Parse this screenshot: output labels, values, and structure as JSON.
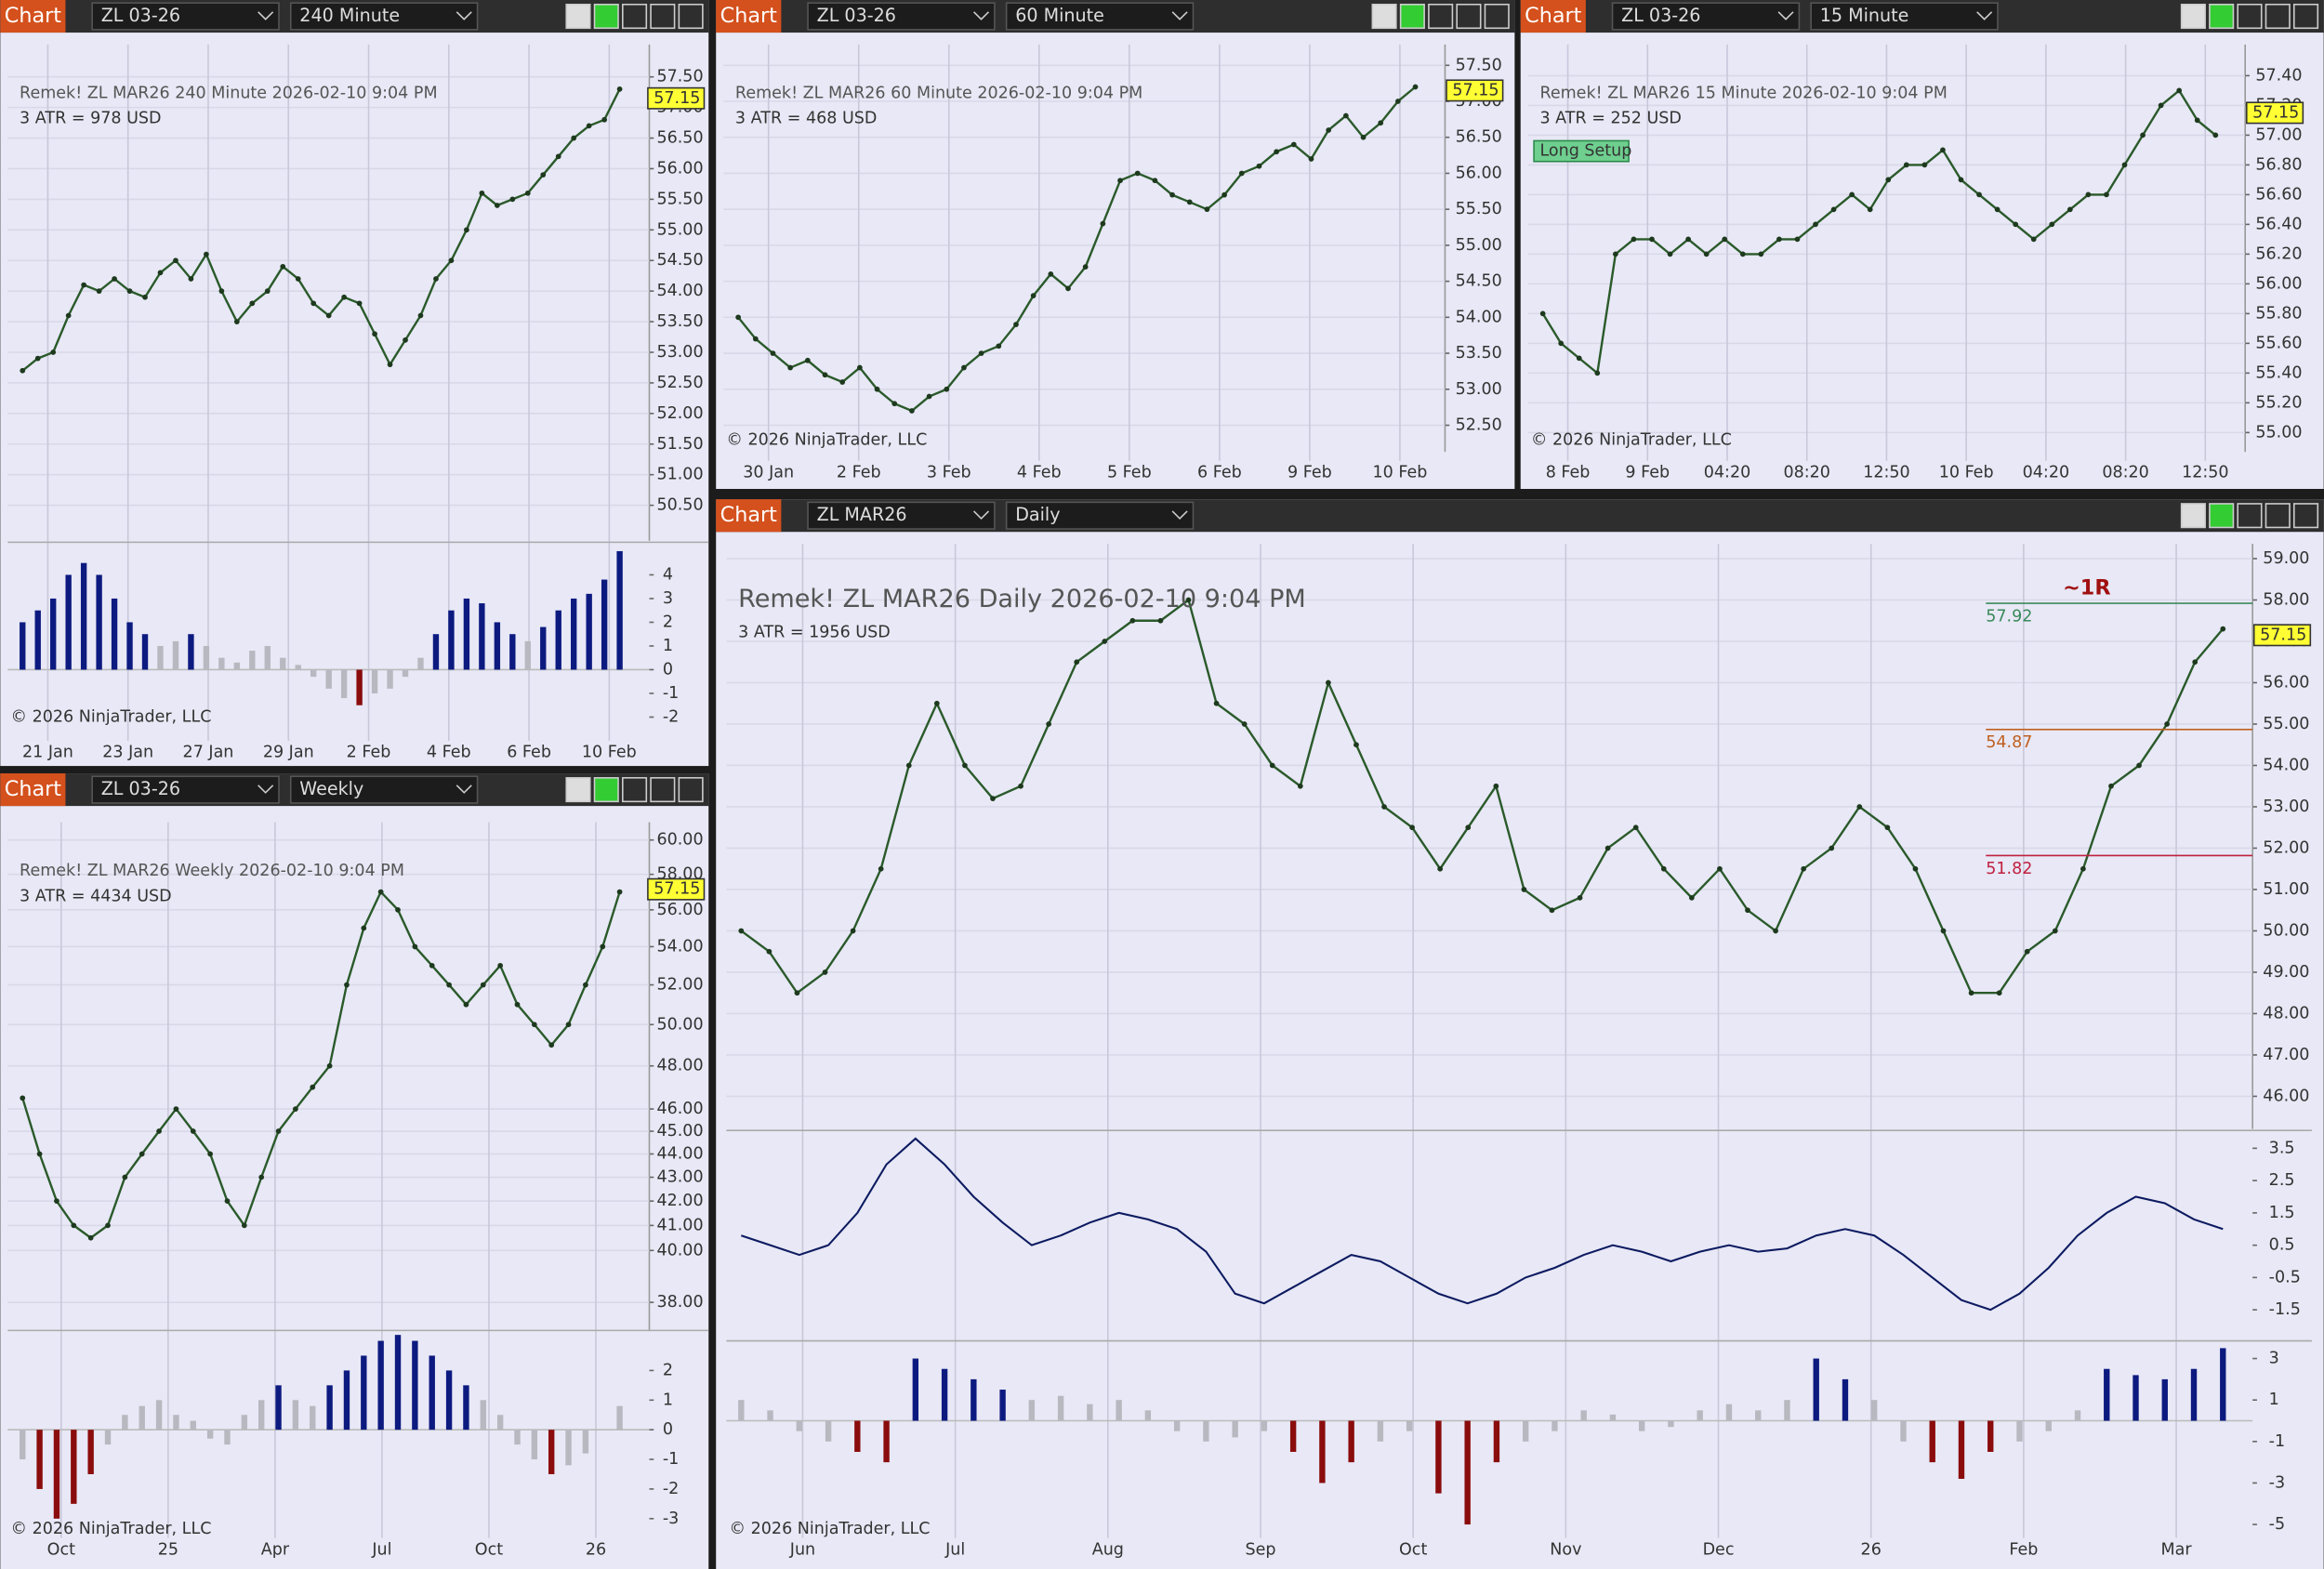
{
  "chart_data": [
    {
      "type": "line",
      "header_label": "Chart",
      "instrument": "ZL 03-26",
      "timeframe": "240 Minute",
      "label": "Remek!  ZL MAR26  240 Minute  2026-02-10 9:04 PM",
      "atr": "3 ATR = 978 USD",
      "copyright": "© 2026 NinjaTrader, LLC",
      "ylim": [
        49.92,
        58.03
      ],
      "yticks": [
        {
          "value": 57.5,
          "label": "57.50"
        },
        {
          "value": 57,
          "label": "57.00"
        },
        {
          "value": 56.5,
          "label": "56.50"
        },
        {
          "value": 56,
          "label": "56.00"
        },
        {
          "value": 55.5,
          "label": "55.50"
        },
        {
          "value": 55,
          "label": "55.00"
        },
        {
          "value": 54.5,
          "label": "54.50"
        },
        {
          "value": 54,
          "label": "54.00"
        },
        {
          "value": 53.5,
          "label": "53.50"
        },
        {
          "value": 53,
          "label": "53.00"
        },
        {
          "value": 52.5,
          "label": "52.50"
        },
        {
          "value": 52,
          "label": "52.00"
        },
        {
          "value": 51.5,
          "label": "51.50"
        },
        {
          "value": 51,
          "label": "51.00"
        },
        {
          "value": 50.5,
          "label": "50.50"
        }
      ],
      "last_price": 57.15,
      "x_labels": [
        "21 Jan",
        "23 Jan",
        "27 Jan",
        "29 Jan",
        "2 Feb",
        "4 Feb",
        "6 Feb",
        "10 Feb"
      ],
      "values": [
        52.7,
        52.9,
        53.0,
        53.6,
        54.1,
        54.0,
        54.2,
        54.0,
        53.9,
        54.3,
        54.5,
        54.2,
        54.6,
        54.0,
        53.5,
        53.8,
        54.0,
        54.4,
        54.2,
        53.8,
        53.6,
        53.9,
        53.8,
        53.3,
        52.8,
        53.2,
        53.6,
        54.2,
        54.5,
        55.0,
        55.6,
        55.4,
        55.5,
        55.6,
        55.9,
        56.2,
        56.5,
        56.7,
        56.8,
        57.3
      ],
      "subpanels": [
        {
          "type": "histogram",
          "lim": [
            -2.5,
            5.25
          ],
          "ticks": [
            4,
            3,
            2,
            1,
            0,
            -1,
            -2
          ],
          "values": [
            2,
            2.5,
            3,
            4,
            4.5,
            4,
            3,
            2,
            1.5,
            1,
            1.2,
            1.5,
            1,
            0.5,
            0.3,
            0.8,
            1,
            0.5,
            0.2,
            -0.3,
            -0.8,
            -1.2,
            -1.5,
            -1,
            -0.8,
            -0.3,
            0.5,
            1.5,
            2.5,
            3,
            2.8,
            2,
            1.5,
            1.2,
            1.8,
            2.5,
            3,
            3.2,
            3.8,
            5
          ]
        }
      ]
    },
    {
      "type": "line",
      "header_label": "Chart",
      "instrument": "ZL 03-26",
      "timeframe": "60 Minute",
      "label": "Remek!  ZL MAR26  60 Minute  2026-02-10 9:04 PM",
      "atr": "3 ATR = 468 USD",
      "copyright": "© 2026 NinjaTrader, LLC",
      "ylim": [
        52.13,
        57.79
      ],
      "yticks": [
        {
          "value": 57.5,
          "label": "57.50"
        },
        {
          "value": 57,
          "label": "57.00"
        },
        {
          "value": 56.5,
          "label": "56.50"
        },
        {
          "value": 56,
          "label": "56.00"
        },
        {
          "value": 55.5,
          "label": "55.50"
        },
        {
          "value": 55,
          "label": "55.00"
        },
        {
          "value": 54.5,
          "label": "54.50"
        },
        {
          "value": 54,
          "label": "54.00"
        },
        {
          "value": 53.5,
          "label": "53.50"
        },
        {
          "value": 53,
          "label": "53.00"
        },
        {
          "value": 52.5,
          "label": "52.50"
        }
      ],
      "last_price": 57.15,
      "x_labels": [
        "30 Jan",
        "2 Feb",
        "3 Feb",
        "4 Feb",
        "5 Feb",
        "6 Feb",
        "9 Feb",
        "10 Feb"
      ],
      "values": [
        54.0,
        53.7,
        53.5,
        53.3,
        53.4,
        53.2,
        53.1,
        53.3,
        53.0,
        52.8,
        52.7,
        52.9,
        53.0,
        53.3,
        53.5,
        53.6,
        53.9,
        54.3,
        54.6,
        54.4,
        54.7,
        55.3,
        55.9,
        56.0,
        55.9,
        55.7,
        55.6,
        55.5,
        55.7,
        56.0,
        56.1,
        56.3,
        56.4,
        56.2,
        56.6,
        56.8,
        56.5,
        56.7,
        57.0,
        57.2
      ]
    },
    {
      "type": "line",
      "header_label": "Chart",
      "instrument": "ZL 03-26",
      "timeframe": "15 Minute",
      "label": "Remek!  ZL MAR26  15 Minute  2026-02-10 9:04 PM",
      "atr": "3 ATR = 252 USD",
      "copyright": "© 2026 NinjaTrader, LLC",
      "setup": "Long Setup",
      "ylim": [
        54.87,
        57.61
      ],
      "yticks": [
        {
          "value": 57.4,
          "label": "57.40"
        },
        {
          "value": 57.2,
          "label": "57.20"
        },
        {
          "value": 57,
          "label": "57.00"
        },
        {
          "value": 56.8,
          "label": "56.80"
        },
        {
          "value": 56.6,
          "label": "56.60"
        },
        {
          "value": 56.4,
          "label": "56.40"
        },
        {
          "value": 56.2,
          "label": "56.20"
        },
        {
          "value": 56,
          "label": "56.00"
        },
        {
          "value": 55.8,
          "label": "55.80"
        },
        {
          "value": 55.6,
          "label": "55.60"
        },
        {
          "value": 55.4,
          "label": "55.40"
        },
        {
          "value": 55.2,
          "label": "55.20"
        },
        {
          "value": 55,
          "label": "55.00"
        }
      ],
      "last_price": 57.15,
      "x_labels": [
        "8 Feb",
        "9 Feb",
        "04:20",
        "08:20",
        "12:50",
        "10 Feb",
        "04:20",
        "08:20",
        "12:50"
      ],
      "values": [
        55.8,
        55.6,
        55.5,
        55.4,
        56.2,
        56.3,
        56.3,
        56.2,
        56.3,
        56.2,
        56.3,
        56.2,
        56.2,
        56.3,
        56.3,
        56.4,
        56.5,
        56.6,
        56.5,
        56.7,
        56.8,
        56.8,
        56.9,
        56.7,
        56.6,
        56.5,
        56.4,
        56.3,
        56.4,
        56.5,
        56.6,
        56.6,
        56.8,
        57.0,
        57.2,
        57.3,
        57.1,
        57.0
      ]
    },
    {
      "type": "line",
      "header_label": "Chart",
      "instrument": "ZL 03-26",
      "timeframe": "Weekly",
      "log": true,
      "label": "Remek!  ZL MAR26  Weekly  2026-02-10 9:04 PM",
      "atr": "3 ATR = 4434 USD",
      "copyright": "© 2026 NinjaTrader, LLC",
      "ylim": [
        36.96,
        61.06
      ],
      "yticks": [
        {
          "value": 60,
          "label": "60.00"
        },
        {
          "value": 58,
          "label": "58.00"
        },
        {
          "value": 56,
          "label": "56.00"
        },
        {
          "value": 54,
          "label": "54.00"
        },
        {
          "value": 52,
          "label": "52.00"
        },
        {
          "value": 50,
          "label": "50.00"
        },
        {
          "value": 48,
          "label": "48.00"
        },
        {
          "value": 46,
          "label": "46.00"
        },
        {
          "value": 45,
          "label": "45.00"
        },
        {
          "value": 44,
          "label": "44.00"
        },
        {
          "value": 43,
          "label": "43.00"
        },
        {
          "value": 42,
          "label": "42.00"
        },
        {
          "value": 41,
          "label": "41.00"
        },
        {
          "value": 40,
          "label": "40.00"
        },
        {
          "value": 38,
          "label": "38.00"
        }
      ],
      "last_price": 57.15,
      "x_labels": [
        "Oct",
        "25",
        "Apr",
        "Jul",
        "Oct",
        "26"
      ],
      "values": [
        46.5,
        44,
        42,
        41,
        40.5,
        41,
        43,
        44,
        45,
        46,
        45,
        44,
        42,
        41,
        43,
        45,
        46,
        47,
        48,
        52,
        55,
        57,
        56,
        54,
        53,
        52,
        51,
        52,
        53,
        51,
        50,
        49,
        50,
        52,
        54,
        57
      ],
      "subpanels": [
        {
          "type": "histogram",
          "lim": [
            -3.75,
            3.25
          ],
          "ticks": [
            2,
            1,
            0,
            -1,
            -2,
            -3
          ],
          "values": [
            -1,
            -2,
            -3,
            -2.5,
            -1.5,
            -0.5,
            0.5,
            0.8,
            1,
            0.5,
            0.3,
            -0.3,
            -0.5,
            0.5,
            1,
            1.5,
            1,
            0.8,
            1.5,
            2,
            2.5,
            3,
            3.2,
            3,
            2.5,
            2,
            1.5,
            1,
            0.5,
            -0.5,
            -1,
            -1.5,
            -1.2,
            -0.8,
            0,
            0.8
          ]
        }
      ]
    },
    {
      "type": "line",
      "header_label": "Chart",
      "instrument": "ZL MAR26",
      "timeframe": "Daily",
      "label": "Remek!  ZL MAR26  Daily  2026-02-10 9:04 PM",
      "atr": "3 ATR = 1956 USD",
      "copyright": "© 2026 NinjaTrader, LLC",
      "target_label": "~1R",
      "levels": [
        57.92,
        54.87,
        51.82
      ],
      "ylim": [
        45.21,
        59.36
      ],
      "yticks": [
        {
          "value": 59,
          "label": "59.00"
        },
        {
          "value": 58,
          "label": "58.00"
        },
        {
          "value": 57,
          "label": "57.00"
        },
        {
          "value": 56,
          "label": "56.00"
        },
        {
          "value": 55,
          "label": "55.00"
        },
        {
          "value": 54,
          "label": "54.00"
        },
        {
          "value": 53,
          "label": "53.00"
        },
        {
          "value": 52,
          "label": "52.00"
        },
        {
          "value": 51,
          "label": "51.00"
        },
        {
          "value": 50,
          "label": "50.00"
        },
        {
          "value": 49,
          "label": "49.00"
        },
        {
          "value": 48,
          "label": "48.00"
        },
        {
          "value": 47,
          "label": "47.00"
        },
        {
          "value": 46,
          "label": "46.00"
        }
      ],
      "last_price": 57.15,
      "x_labels": [
        "Jun",
        "Jul",
        "Aug",
        "Sep",
        "Oct",
        "Nov",
        "Dec",
        "26",
        "Feb",
        "Mar"
      ],
      "values": [
        50.0,
        49.5,
        48.5,
        49,
        50,
        51.5,
        54,
        55.5,
        54,
        53.2,
        53.5,
        55,
        56.5,
        57,
        57.5,
        57.5,
        58,
        55.5,
        55,
        54,
        53.5,
        56,
        54.5,
        53,
        52.5,
        51.5,
        52.5,
        53.5,
        51,
        50.5,
        50.8,
        52,
        52.5,
        51.5,
        50.8,
        51.5,
        50.5,
        50,
        51.5,
        52,
        53,
        52.5,
        51.5,
        50,
        48.5,
        48.5,
        49.5,
        50,
        51.5,
        53.5,
        54,
        55,
        56.5,
        57.3
      ],
      "subpanels": [
        {
          "type": "line",
          "lim": [
            -2.46,
            3.96
          ],
          "ticks": [
            3.5,
            2.5,
            1.5,
            0.5,
            -0.5,
            -1.5
          ],
          "values": [
            0.8,
            0.5,
            0.2,
            0.5,
            1.5,
            3,
            3.8,
            3,
            2,
            1.2,
            0.5,
            0.8,
            1.2,
            1.5,
            1.3,
            1,
            0.3,
            -1,
            -1.3,
            -0.8,
            -0.3,
            0.2,
            0,
            -0.5,
            -1,
            -1.3,
            -1,
            -0.5,
            -0.2,
            0.2,
            0.5,
            0.3,
            0,
            0.3,
            0.5,
            0.3,
            0.4,
            0.8,
            1,
            0.8,
            0.2,
            -0.5,
            -1.2,
            -1.5,
            -1,
            -0.2,
            0.8,
            1.5,
            2,
            1.8,
            1.3,
            1.0
          ]
        },
        {
          "type": "histogram",
          "lim": [
            -5.79,
            3.71
          ],
          "ticks": [
            3,
            1,
            -1,
            -3,
            -5
          ],
          "values": [
            1,
            0.5,
            -0.5,
            -1,
            -1.5,
            -2,
            3,
            2.5,
            2,
            1.5,
            1,
            1.2,
            0.8,
            1,
            0.5,
            -0.5,
            -1,
            -0.8,
            -0.5,
            -1.5,
            -3,
            -2,
            -1,
            -0.5,
            -3.5,
            -5,
            -2,
            -1,
            -0.5,
            0.5,
            0.3,
            -0.5,
            -0.3,
            0.5,
            0.8,
            0.5,
            1,
            3,
            2,
            1,
            -1,
            -2,
            -2.8,
            -1.5,
            -1,
            -0.5,
            0.5,
            2.5,
            2.2,
            2,
            2.5,
            3.5
          ]
        }
      ]
    }
  ]
}
